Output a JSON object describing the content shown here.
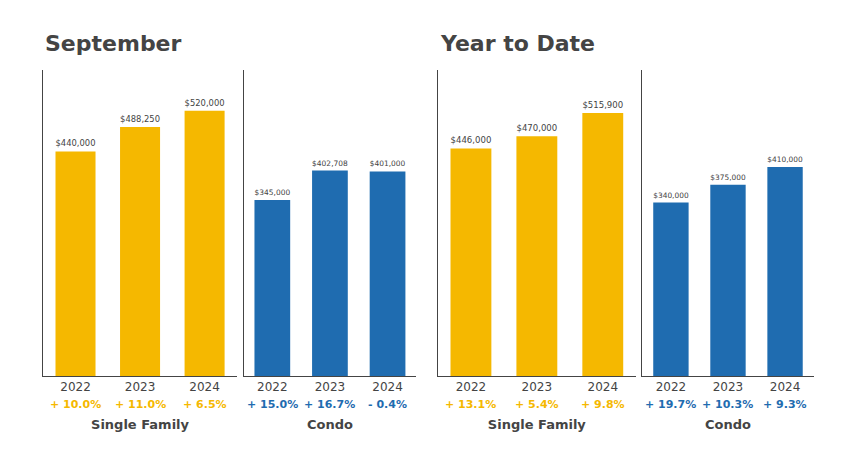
{
  "chart_data": [
    {
      "type": "bar",
      "title": "September",
      "xlabel": "Single Family",
      "categories": [
        "2022",
        "2023",
        "2024"
      ],
      "values": [
        440000,
        488250,
        520000
      ],
      "value_labels": [
        "$440,000",
        "$488,250",
        "$520,000"
      ],
      "data_labels": true,
      "annotations": [
        {
          "category": "2022",
          "text": "+ 10.0%"
        },
        {
          "category": "2023",
          "text": "+ 11.0%"
        },
        {
          "category": "2024",
          "text": "+ 6.5%"
        }
      ],
      "color": "#F5B800",
      "ylim": [
        0,
        600000
      ],
      "yticks": [],
      "tick_labels": "x",
      "grid": false
    },
    {
      "type": "bar",
      "xlabel": "Condo",
      "categories": [
        "2022",
        "2023",
        "2024"
      ],
      "values": [
        345000,
        402708,
        401000
      ],
      "value_labels": [
        "$345,000",
        "$402,708",
        "$401,000"
      ],
      "data_labels": true,
      "annotations": [
        {
          "category": "2022",
          "text": "+ 15.0%"
        },
        {
          "category": "2023",
          "text": "+ 16.7%"
        },
        {
          "category": "2024",
          "text": "- 0.4%"
        }
      ],
      "color": "#1F6CB0",
      "ylim": [
        0,
        600000
      ],
      "yticks": [],
      "tick_labels": "x",
      "grid": false
    },
    {
      "type": "bar",
      "title": "Year to Date",
      "xlabel": "Single Family",
      "categories": [
        "2022",
        "2023",
        "2024"
      ],
      "values": [
        446000,
        470000,
        515900
      ],
      "value_labels": [
        "$446,000",
        "$470,000",
        "$515,900"
      ],
      "data_labels": true,
      "annotations": [
        {
          "category": "2022",
          "text": "+ 13.1%"
        },
        {
          "category": "2023",
          "text": "+ 5.4%"
        },
        {
          "category": "2024",
          "text": "+ 9.8%"
        }
      ],
      "color": "#F5B800",
      "ylim": [
        0,
        600000
      ],
      "yticks": [],
      "tick_labels": "x",
      "grid": false
    },
    {
      "type": "bar",
      "xlabel": "Condo",
      "categories": [
        "2022",
        "2023",
        "2024"
      ],
      "values": [
        340000,
        375000,
        410000
      ],
      "value_labels": [
        "$340,000",
        "$375,000",
        "$410,000"
      ],
      "data_labels": true,
      "annotations": [
        {
          "category": "2022",
          "text": "+ 19.7%"
        },
        {
          "category": "2023",
          "text": "+ 10.3%"
        },
        {
          "category": "2024",
          "text": "+ 9.3%"
        }
      ],
      "color": "#1F6CB0",
      "ylim": [
        0,
        600000
      ],
      "yticks": [],
      "tick_labels": "x",
      "grid": false
    }
  ]
}
